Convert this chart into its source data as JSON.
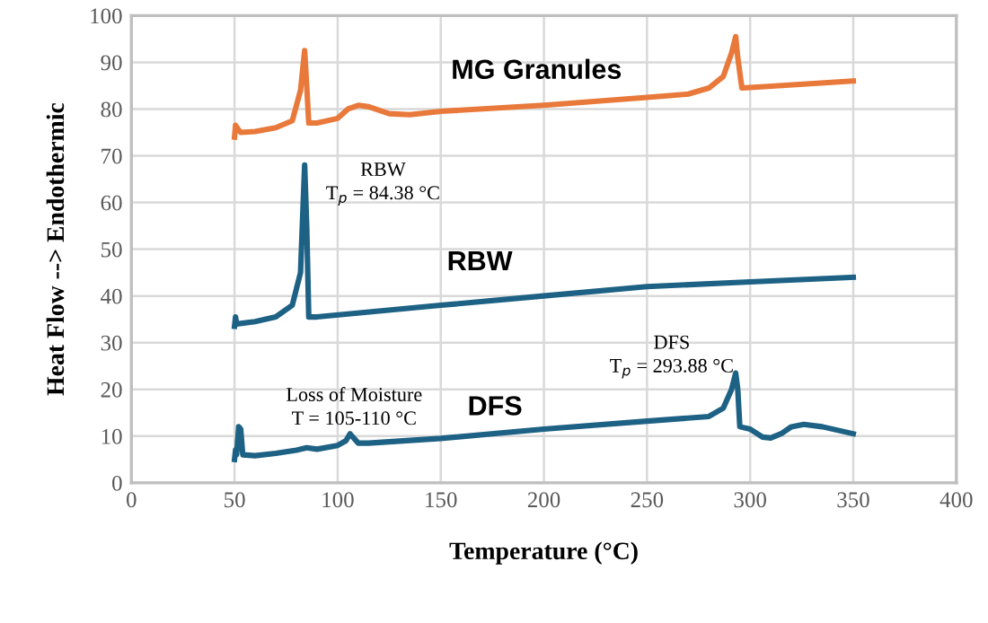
{
  "chart_data": {
    "type": "line",
    "xlabel": "Temperature (°C)",
    "ylabel": "Heat Flow --> Endothermic",
    "xlim": [
      0,
      400
    ],
    "xticks": [
      0,
      50,
      100,
      150,
      200,
      250,
      300,
      350,
      400
    ],
    "ylim": [
      0,
      100
    ],
    "yticks": [
      0,
      10,
      20,
      30,
      40,
      50,
      60,
      70,
      80,
      90,
      100
    ],
    "grid": true,
    "legend": false,
    "marker": "none",
    "line_style": "solid",
    "annotations": [
      "RBW\nT$_{p}$ = 84.38 °C",
      "DFS\nT$_{p}$ = 293.88 °C",
      "Loss of Moisture\nT = 105-110 °C"
    ],
    "series": [
      {
        "name": "MG Granules",
        "color": "#e8793a",
        "x": [
          50,
          50.5,
          52,
          53,
          60,
          70,
          78,
          82,
          84,
          85,
          86,
          90,
          100,
          105,
          110,
          115,
          125,
          135,
          150,
          200,
          250,
          270,
          280,
          287,
          291,
          293,
          294,
          296,
          300,
          350
        ],
        "values": [
          74,
          76.5,
          75.5,
          75,
          75.2,
          76,
          77.5,
          84,
          92.5,
          85,
          77,
          77,
          78,
          80,
          80.8,
          80.5,
          79,
          78.8,
          79.5,
          80.8,
          82.5,
          83.2,
          84.5,
          87,
          92,
          95.5,
          91,
          84.5,
          84.6,
          86
        ]
      },
      {
        "name": "RBW",
        "color": "#1d6184",
        "x": [
          50,
          50.5,
          51,
          60,
          70,
          78,
          82,
          84,
          85,
          86,
          90,
          150,
          200,
          250,
          300,
          350
        ],
        "values": [
          33.5,
          35.5,
          34,
          34.5,
          35.5,
          38,
          45,
          68,
          55,
          35.5,
          35.5,
          38,
          40,
          42,
          43,
          44
        ]
      },
      {
        "name": "DFS",
        "color": "#1d6184",
        "x": [
          50,
          50.5,
          51,
          52,
          53,
          54,
          60,
          70,
          80,
          85,
          90,
          100,
          104,
          106,
          110,
          115,
          150,
          200,
          250,
          280,
          287,
          291,
          293,
          294,
          295,
          300,
          306,
          310,
          315,
          320,
          326,
          335,
          350
        ],
        "values": [
          5,
          7,
          6,
          12,
          11.5,
          6,
          5.8,
          6.3,
          7,
          7.5,
          7.2,
          8,
          9,
          10.5,
          8.5,
          8.5,
          9.5,
          11.5,
          13.2,
          14.2,
          16,
          20,
          23.5,
          20,
          12,
          11.5,
          9.8,
          9.6,
          10.5,
          12,
          12.5,
          12,
          10.5
        ]
      }
    ]
  }
}
